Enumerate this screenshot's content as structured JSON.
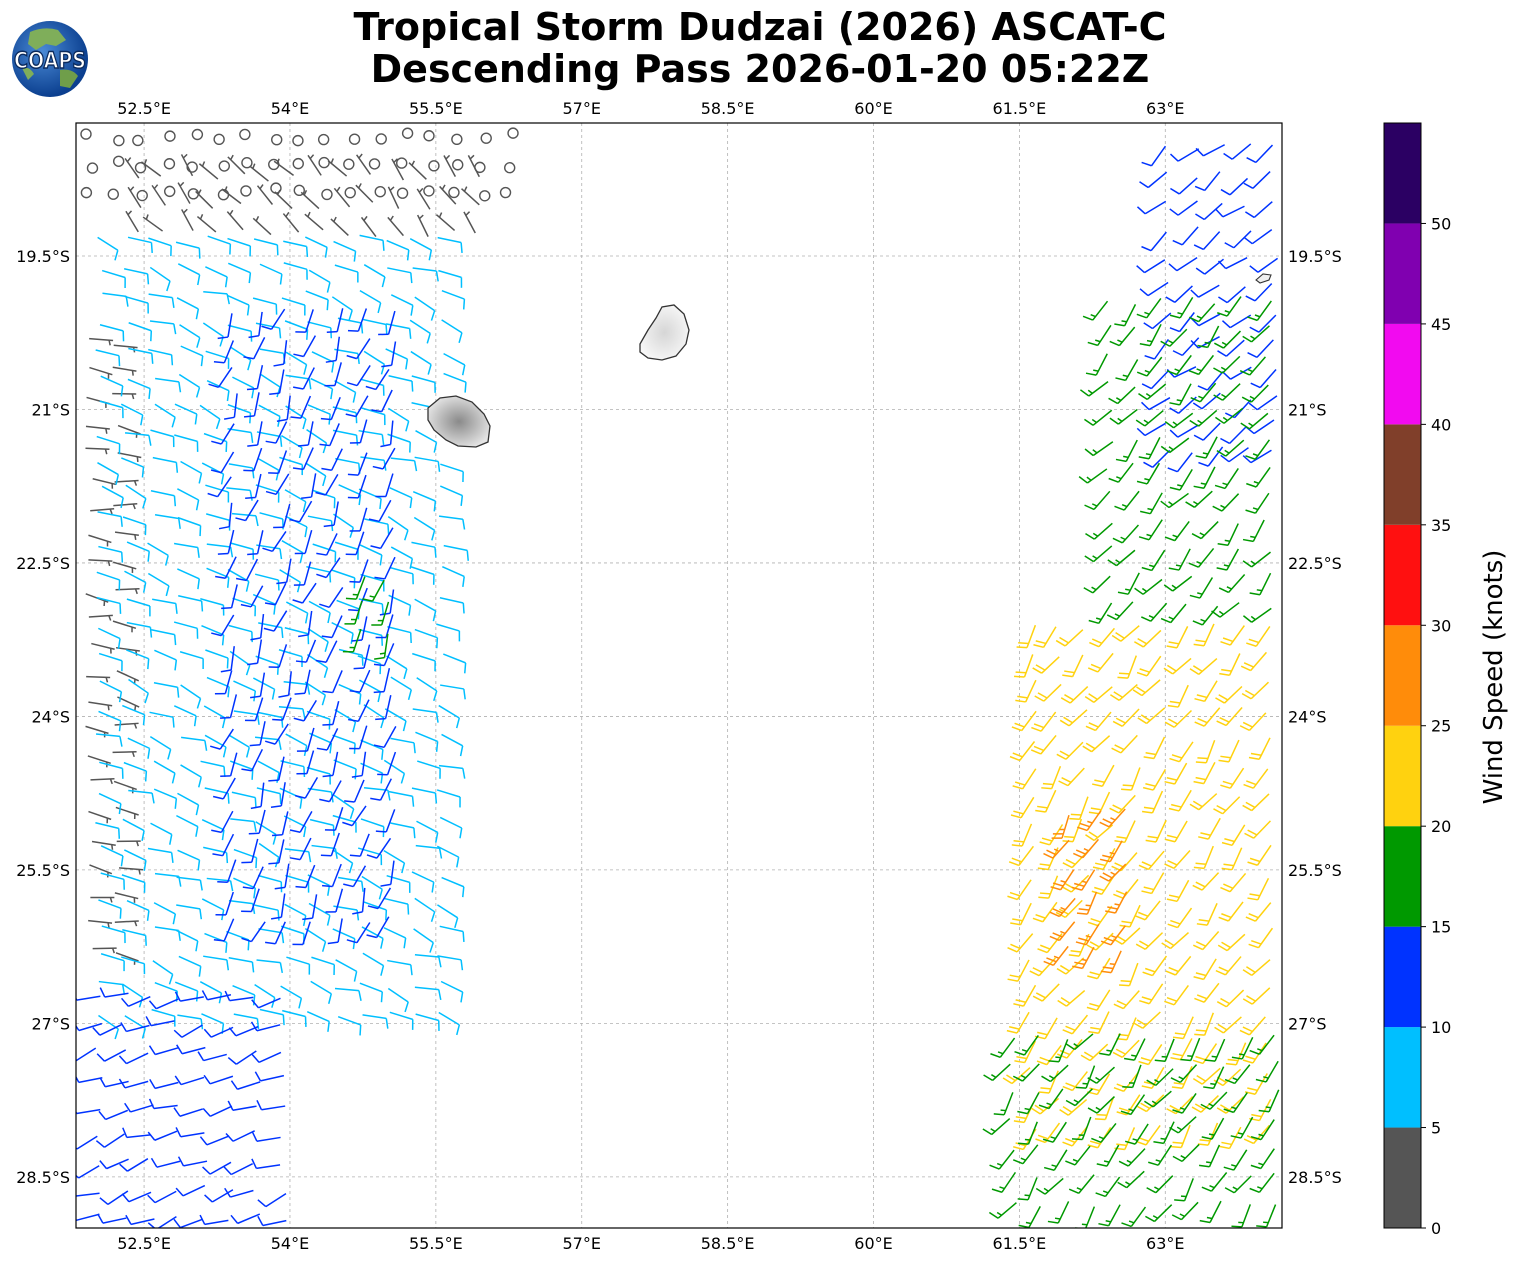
{
  "title": {
    "line1": "Tropical Storm Dudzai (2026) ASCAT-C",
    "line2": "Descending Pass 2026-01-20 05:22Z"
  },
  "logo": {
    "text": "COAPS",
    "icon": "coaps-globe-logo"
  },
  "map": {
    "lon_range": [
      51.8,
      64.2
    ],
    "lat_range": [
      -29.0,
      -18.2
    ],
    "lon_ticks": [
      {
        "value": 52.5,
        "label": "52.5°E"
      },
      {
        "value": 54.0,
        "label": "54°E"
      },
      {
        "value": 55.5,
        "label": "55.5°E"
      },
      {
        "value": 57.0,
        "label": "57°E"
      },
      {
        "value": 58.5,
        "label": "58.5°E"
      },
      {
        "value": 60.0,
        "label": "60°E"
      },
      {
        "value": 61.5,
        "label": "61.5°E"
      },
      {
        "value": 63.0,
        "label": "63°E"
      }
    ],
    "lat_ticks": [
      {
        "value": -19.5,
        "label": "19.5°S"
      },
      {
        "value": -21.0,
        "label": "21°S"
      },
      {
        "value": -22.5,
        "label": "22.5°S"
      },
      {
        "value": -24.0,
        "label": "24°S"
      },
      {
        "value": -25.5,
        "label": "25.5°S"
      },
      {
        "value": -27.0,
        "label": "27°S"
      },
      {
        "value": -28.5,
        "label": "28.5°S"
      }
    ],
    "grid": true,
    "islands": [
      {
        "name": "reunion",
        "center": [
          55.53,
          -21.12
        ]
      },
      {
        "name": "mauritius",
        "center": [
          57.55,
          -20.28
        ]
      },
      {
        "name": "rodrigues",
        "center": [
          63.42,
          -19.72
        ]
      }
    ]
  },
  "colorbar": {
    "title": "Wind Speed (knots)",
    "ticks": [
      "0",
      "5",
      "10",
      "15",
      "20",
      "25",
      "30",
      "35",
      "40",
      "45",
      "50"
    ],
    "bins": [
      {
        "from": 0,
        "to": 5,
        "color": "#555555"
      },
      {
        "from": 5,
        "to": 10,
        "color": "#00bfff"
      },
      {
        "from": 10,
        "to": 15,
        "color": "#0033ff"
      },
      {
        "from": 15,
        "to": 20,
        "color": "#009900"
      },
      {
        "from": 20,
        "to": 25,
        "color": "#ffd20f"
      },
      {
        "from": 25,
        "to": 30,
        "color": "#ff8c0a"
      },
      {
        "from": 30,
        "to": 35,
        "color": "#ff1010"
      },
      {
        "from": 35,
        "to": 40,
        "color": "#803f2a"
      },
      {
        "from": 40,
        "to": 45,
        "color": "#f20af0"
      },
      {
        "from": 45,
        "to": 50,
        "color": "#8000b0"
      },
      {
        "from": 50,
        "to": 55,
        "color": "#2b0063"
      }
    ]
  },
  "wind_swaths": [
    {
      "name": "west-swath-calm-north",
      "bounds": {
        "lon_min": 51.8,
        "lon_max": 56.5,
        "lat_min": -19.1,
        "lat_max": -18.2
      },
      "speed_kt": 1,
      "dir_deg": 0
    },
    {
      "name": "west-swath-light-north",
      "bounds": {
        "lon_min": 52.3,
        "lon_max": 56.0,
        "lat_min": -19.5,
        "lat_max": -18.6
      },
      "speed_kt": 4,
      "dir_deg": 320
    },
    {
      "name": "west-swath-light-west",
      "bounds": {
        "lon_min": 51.8,
        "lon_max": 52.4,
        "lat_min": -26.4,
        "lat_max": -20.2
      },
      "speed_kt": 4,
      "dir_deg": 100
    },
    {
      "name": "west-swath-moderate",
      "bounds": {
        "lon_min": 51.9,
        "lon_max": 55.8,
        "lat_min": -27.0,
        "lat_max": -19.2
      },
      "speed_kt": 8,
      "dir_deg": 110
    },
    {
      "name": "west-swath-fresh",
      "bounds": {
        "lon_min": 53.3,
        "lon_max": 55.1,
        "lat_min": -26.0,
        "lat_max": -19.9
      },
      "speed_kt": 12,
      "dir_deg": 200
    },
    {
      "name": "west-swath-fresh-south",
      "bounds": {
        "lon_min": 51.9,
        "lon_max": 54.0,
        "lat_min": -29.0,
        "lat_max": -26.6
      },
      "speed_kt": 12,
      "dir_deg": 250
    },
    {
      "name": "west-swath-strong-patch",
      "bounds": {
        "lon_min": 54.6,
        "lon_max": 55.1,
        "lat_min": -23.4,
        "lat_max": -22.5
      },
      "speed_kt": 17,
      "dir_deg": 200
    },
    {
      "name": "east-swath-fresh-north",
      "bounds": {
        "lon_min": 62.9,
        "lon_max": 64.2,
        "lat_min": -21.5,
        "lat_max": -18.3
      },
      "speed_kt": 12,
      "dir_deg": 230
    },
    {
      "name": "east-swath-strong",
      "bounds": {
        "lon_min": 62.3,
        "lon_max": 64.2,
        "lat_min": -23.0,
        "lat_max": -19.8
      },
      "speed_kt": 17,
      "dir_deg": 220
    },
    {
      "name": "east-swath-near-gale",
      "bounds": {
        "lon_min": 61.5,
        "lon_max": 64.2,
        "lat_min": -28.0,
        "lat_max": -23.0
      },
      "speed_kt": 22,
      "dir_deg": 215
    },
    {
      "name": "east-swath-gale-patch",
      "bounds": {
        "lon_min": 61.9,
        "lon_max": 62.8,
        "lat_min": -26.5,
        "lat_max": -24.8
      },
      "speed_kt": 27,
      "dir_deg": 210
    },
    {
      "name": "east-swath-strong-south",
      "bounds": {
        "lon_min": 61.3,
        "lon_max": 64.2,
        "lat_min": -29.0,
        "lat_max": -27.0
      },
      "speed_kt": 17,
      "dir_deg": 215
    }
  ]
}
